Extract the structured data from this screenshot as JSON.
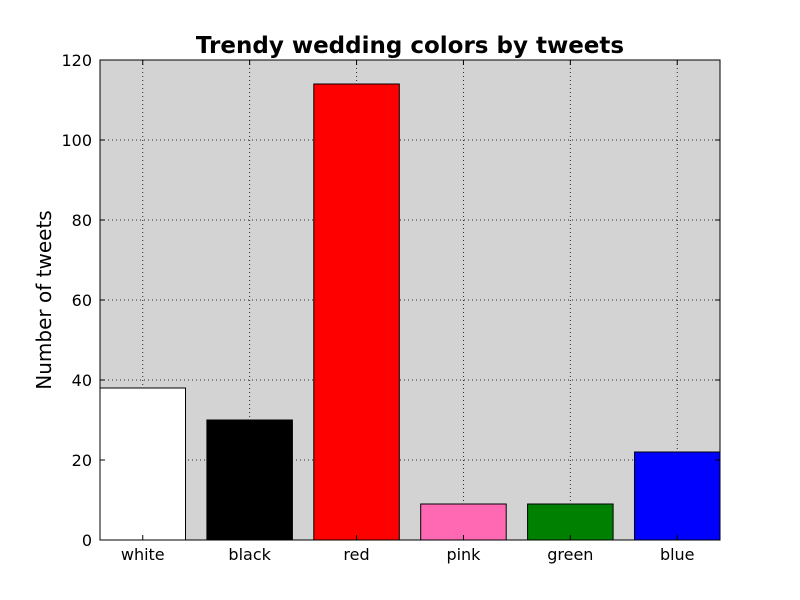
{
  "chart_data": {
    "type": "bar",
    "title": "Trendy wedding colors by tweets",
    "xlabel": "",
    "ylabel": "Number of tweets",
    "categories": [
      "white",
      "black",
      "red",
      "pink",
      "green",
      "blue"
    ],
    "values": [
      38,
      30,
      114,
      9,
      9,
      22
    ],
    "colors": [
      "#ffffff",
      "#000000",
      "#ff0000",
      "#ff69b4",
      "#008000",
      "#0000ff"
    ],
    "ylim": [
      0,
      120
    ],
    "yticks": [
      0,
      20,
      40,
      60,
      80,
      100,
      120
    ],
    "grid": true,
    "plot_background": "#d3d3d3",
    "legend": "none"
  }
}
